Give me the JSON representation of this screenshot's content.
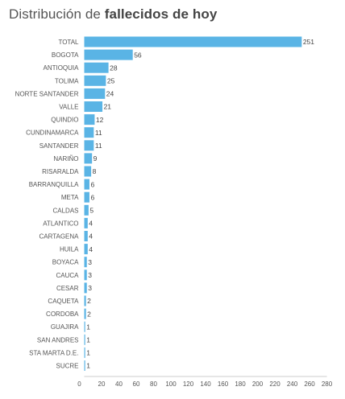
{
  "title": {
    "prefix": "Distribución de",
    "bold": "fallecidos de hoy"
  },
  "colors": {
    "bar": "#5ab4e5",
    "axis": "#cccccc",
    "text": "#555555"
  },
  "chart_data": {
    "type": "bar",
    "orientation": "horizontal",
    "title": "Distribución de fallecidos de hoy",
    "categories": [
      "TOTAL",
      "BOGOTA",
      "ANTIOQUIA",
      "TOLIMA",
      "NORTE SANTANDER",
      "VALLE",
      "QUINDIO",
      "CUNDINAMARCA",
      "SANTANDER",
      "NARIÑO",
      "RISARALDA",
      "BARRANQUILLA",
      "META",
      "CALDAS",
      "ATLANTICO",
      "CARTAGENA",
      "HUILA",
      "BOYACA",
      "CAUCA",
      "CESAR",
      "CAQUETA",
      "CORDOBA",
      "GUAJIRA",
      "SAN ANDRES",
      "STA MARTA D.E.",
      "SUCRE"
    ],
    "values": [
      251,
      56,
      28,
      25,
      24,
      21,
      12,
      11,
      11,
      9,
      8,
      6,
      6,
      5,
      4,
      4,
      4,
      3,
      3,
      3,
      2,
      2,
      1,
      1,
      1,
      1
    ],
    "xlim": [
      0,
      280
    ],
    "xticks": [
      0,
      20,
      40,
      60,
      80,
      100,
      120,
      140,
      160,
      180,
      200,
      220,
      240,
      260,
      280
    ],
    "grid": false,
    "legend": "none"
  }
}
